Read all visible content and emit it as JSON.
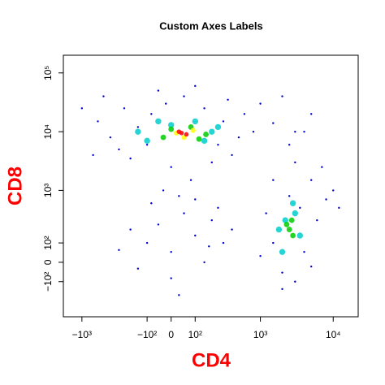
{
  "chart_data": {
    "type": "scatter",
    "title": "Custom Axes Labels",
    "xlabel": "CD4",
    "ylabel": "CD8",
    "xscale": "logicle",
    "yscale": "logicle",
    "label_color": "#ff0000",
    "xlim": [
      -1800,
      22000
    ],
    "ylim": [
      -500,
      200000
    ],
    "xticks": [
      {
        "value": -1000,
        "label": "−10³"
      },
      {
        "value": -100,
        "label": "−10²"
      },
      0,
      {
        "value": 100,
        "label": "10²"
      },
      {
        "value": 1000,
        "label": "10³"
      },
      {
        "value": 10000,
        "label": "10⁴"
      }
    ],
    "yticks": [
      {
        "value": -100,
        "label": "−10²"
      },
      0,
      {
        "value": 100,
        "label": "10²"
      },
      {
        "value": 1000,
        "label": "10³"
      },
      {
        "value": 10000,
        "label": "10⁴"
      },
      {
        "value": 100000,
        "label": "10⁵"
      }
    ],
    "series": [
      {
        "color": "#0000cc",
        "x": [
          -300,
          -150,
          -80,
          -20,
          50,
          150,
          300,
          500,
          400,
          200,
          0,
          -200,
          -400,
          -600,
          100,
          -50,
          600,
          800,
          250,
          -100,
          -250,
          350,
          -500,
          1000,
          -1000,
          1500,
          3000,
          5000,
          2000,
          -700,
          80,
          30,
          -200,
          -100,
          0,
          100,
          200,
          300,
          50,
          -50,
          -300,
          150,
          0,
          -150,
          250,
          100,
          -80,
          400,
          30,
          -30,
          180,
          1500,
          2000,
          3000,
          4000,
          6000,
          8000,
          5000,
          3000,
          2500,
          4000,
          1200,
          1500,
          7000,
          2000,
          3500,
          10000,
          1000,
          2500,
          5000,
          12000
        ],
        "y": [
          5000,
          12000,
          20000,
          30000,
          40000,
          25000,
          15000,
          8000,
          4000,
          3000,
          2500,
          3500,
          8000,
          15000,
          60000,
          50000,
          20000,
          10000,
          6000,
          6000,
          25000,
          35000,
          40000,
          30000,
          25000,
          14000,
          10000,
          20000,
          40000,
          4000,
          1500,
          800,
          200,
          100,
          50,
          150,
          300,
          100,
          400,
          250,
          60,
          0,
          -80,
          -30,
          500,
          700,
          600,
          200,
          -200,
          1000,
          80,
          100,
          -50,
          -100,
          50,
          300,
          700,
          1500,
          3000,
          6000,
          10000,
          400,
          1500,
          2500,
          -150,
          500,
          1000,
          30,
          800,
          -20,
          500
        ]
      },
      {
        "color": "#00cccc",
        "x": [
          -100,
          0,
          100,
          200,
          150,
          -50,
          250,
          -150,
          2000,
          3000,
          2200,
          3500,
          2800,
          1800
        ],
        "y": [
          7000,
          13000,
          15000,
          10000,
          7000,
          15000,
          12000,
          10000,
          50,
          400,
          300,
          150,
          600,
          200
        ]
      },
      {
        "color": "#00cc00",
        "x": [
          -30,
          80,
          160,
          0,
          120,
          2500,
          2800,
          2300,
          2700
        ],
        "y": [
          8000,
          12000,
          9000,
          11000,
          7500,
          200,
          150,
          250,
          300
        ]
      },
      {
        "color": "#ffff00",
        "x": [
          20,
          90,
          50
        ],
        "y": [
          9500,
          10500,
          8000
        ]
      },
      {
        "color": "#ff0000",
        "x": [
          40,
          60,
          30
        ],
        "y": [
          9500,
          9000,
          10000
        ]
      }
    ]
  }
}
